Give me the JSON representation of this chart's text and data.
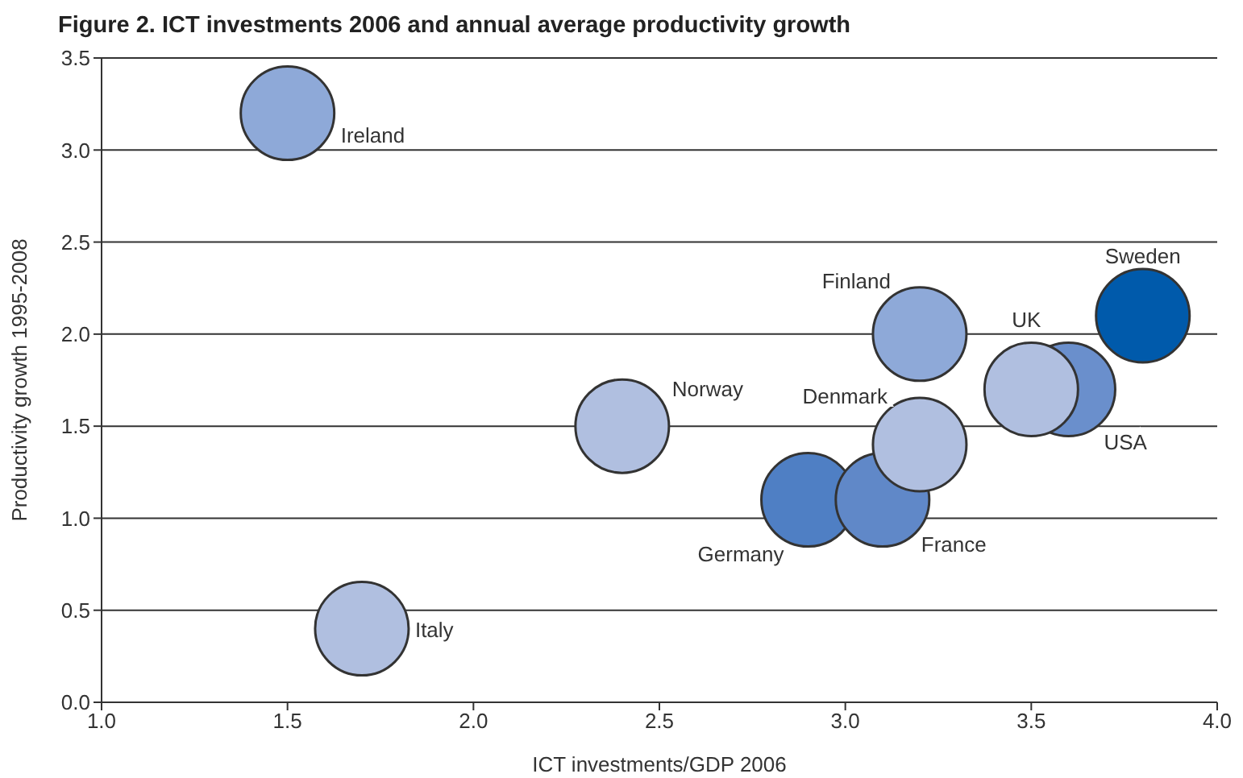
{
  "chart_data": {
    "type": "scatter",
    "title": "Figure 2. ICT investments 2006 and annual average productivity growth",
    "xlabel": "ICT investments/GDP 2006",
    "ylabel": "Productivity growth 1995-2008",
    "x": [
      1.5,
      1.7,
      2.4,
      2.9,
      3.1,
      3.2,
      3.2,
      3.6,
      3.5,
      3.8
    ],
    "values": [
      3.2,
      0.4,
      1.5,
      1.1,
      1.1,
      1.4,
      2.0,
      1.7,
      1.7,
      2.1
    ],
    "colors": [
      "#8ea9d8",
      "#b0bfe0",
      "#b0bfe0",
      "#4f7fc4",
      "#6088c8",
      "#b0bfe0",
      "#8ea9d8",
      "#6a8fcc",
      "#b0bfe0",
      "#005aab"
    ],
    "annotations": [
      {
        "text": "Ireland",
        "x": 1.5,
        "y": 3.2
      },
      {
        "text": "Italy",
        "x": 1.7,
        "y": 0.4
      },
      {
        "text": "Norway",
        "x": 2.4,
        "y": 1.5
      },
      {
        "text": "Germany",
        "x": 2.9,
        "y": 1.1
      },
      {
        "text": "France",
        "x": 3.1,
        "y": 1.1
      },
      {
        "text": "Denmark",
        "x": 3.2,
        "y": 1.4
      },
      {
        "text": "Finland",
        "x": 3.2,
        "y": 2.0
      },
      {
        "text": "USA",
        "x": 3.6,
        "y": 1.7
      },
      {
        "text": "UK",
        "x": 3.5,
        "y": 1.7
      },
      {
        "text": "Sweden",
        "x": 3.8,
        "y": 2.1
      }
    ],
    "xlim": [
      1.0,
      4.0
    ],
    "xticks": [
      {
        "value": 1,
        "label": "1.0"
      },
      1.5,
      {
        "value": 2,
        "label": "2.0"
      },
      2.5,
      {
        "value": 3,
        "label": "3.0"
      },
      3.5,
      {
        "value": 4,
        "label": "4.0"
      }
    ],
    "ylim": [
      0,
      3.5
    ],
    "yticks": [
      {
        "value": 0,
        "label": "0.0"
      },
      0.5,
      {
        "value": 1,
        "label": "1.0"
      },
      1.5,
      {
        "value": 2,
        "label": "2.0"
      },
      2.5,
      {
        "value": 3,
        "label": "3.0"
      },
      3.5
    ],
    "grid": "y",
    "marker": "circle",
    "legend": false
  }
}
